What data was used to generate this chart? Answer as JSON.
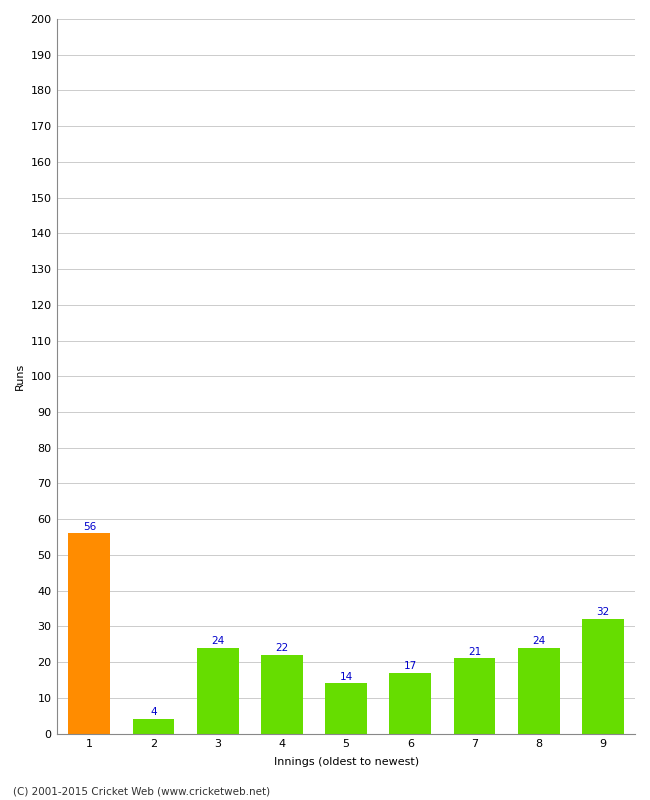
{
  "categories": [
    "1",
    "2",
    "3",
    "4",
    "5",
    "6",
    "7",
    "8",
    "9"
  ],
  "values": [
    56,
    4,
    24,
    22,
    14,
    17,
    21,
    24,
    32
  ],
  "bar_colors": [
    "#FF8C00",
    "#66DD00",
    "#66DD00",
    "#66DD00",
    "#66DD00",
    "#66DD00",
    "#66DD00",
    "#66DD00",
    "#66DD00"
  ],
  "ylabel": "Runs",
  "xlabel": "Innings (oldest to newest)",
  "ylim": [
    0,
    200
  ],
  "yticks": [
    0,
    10,
    20,
    30,
    40,
    50,
    60,
    70,
    80,
    90,
    100,
    110,
    120,
    130,
    140,
    150,
    160,
    170,
    180,
    190,
    200
  ],
  "label_color": "#0000CC",
  "label_fontsize": 7.5,
  "axis_label_fontsize": 8,
  "tick_fontsize": 8,
  "footer": "(C) 2001-2015 Cricket Web (www.cricketweb.net)",
  "footer_fontsize": 7.5,
  "background_color": "#FFFFFF",
  "grid_color": "#CCCCCC",
  "spine_color": "#888888"
}
